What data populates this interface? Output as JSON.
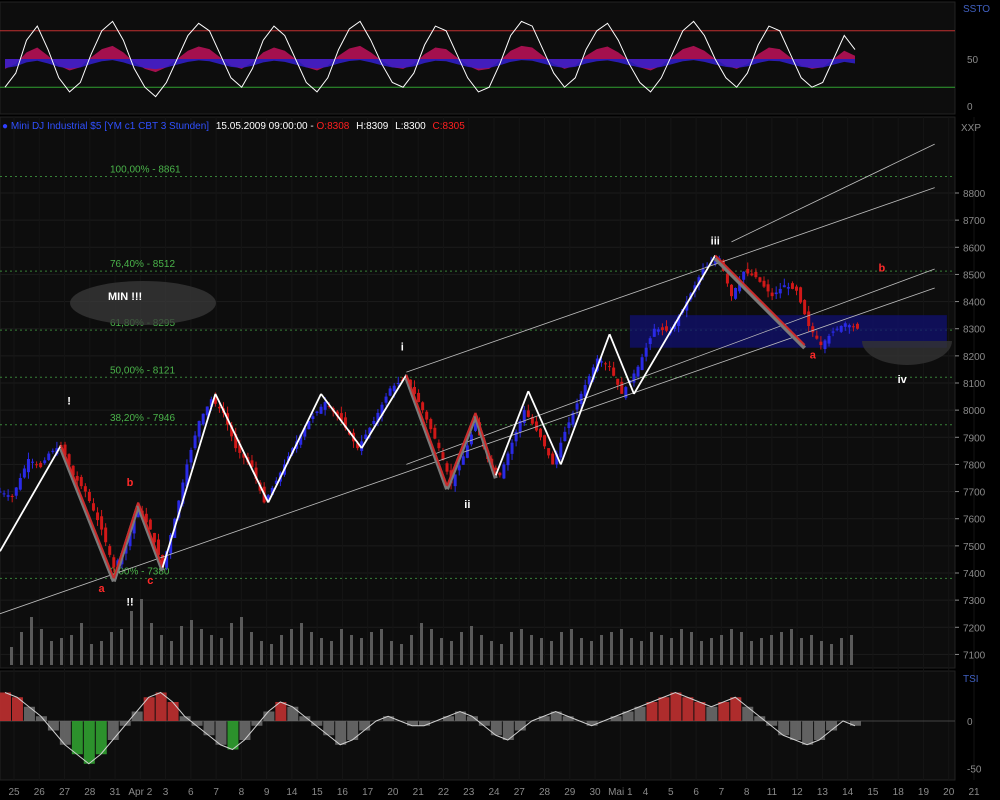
{
  "colors": {
    "bg": "#000000",
    "pane": "#0d0d0d",
    "grid": "#1c1c1c",
    "up": "#2a2ae6",
    "down": "#d11818",
    "axis": "#8a8a8a",
    "fib": "#4ab34a",
    "swing_white": "#ffffff",
    "swing_red": "#cc2a2a",
    "channel": "#bdbdbd",
    "header_blue": "#2f3fff",
    "header_red": "#ff2020"
  },
  "header": {
    "instrument": "Mini DJ Industrial $5 [YM c1 CBT 3 Stunden]",
    "datetime": "15.05.2009 09:00:00",
    "open_label": "O:8308",
    "high_label": "H:8309",
    "low_label": "L:8300",
    "close_label": "C:8305",
    "separator": " - "
  },
  "top_panel": {
    "name": "SSTO",
    "ticks": [
      "50",
      "0"
    ],
    "levels": [
      80,
      20
    ]
  },
  "bottom_panel": {
    "name": "TSI",
    "ticks": [
      "0",
      "-50"
    ]
  },
  "chart_data": {
    "type": "candlestick",
    "instrument": "Mini DJ Industrial $5 [YM c1 CBT 3 Stunden]",
    "y_axis_label": "XXP",
    "ylim": [
      7050,
      9080
    ],
    "y_ticks": [
      8800,
      8700,
      8600,
      8500,
      8400,
      8300,
      8200,
      8100,
      8000,
      7900,
      7800,
      7700,
      7600,
      7500,
      7400,
      7300,
      7200,
      7100
    ],
    "x_ticks": [
      "25",
      "26",
      "27",
      "28",
      "31",
      "Apr 2",
      "3",
      "6",
      "7",
      "8",
      "9",
      "14",
      "15",
      "16",
      "17",
      "20",
      "21",
      "22",
      "23",
      "24",
      "27",
      "28",
      "29",
      "30",
      "Mai 1",
      "4",
      "5",
      "6",
      "7",
      "8",
      "11",
      "12",
      "13",
      "14",
      "15",
      "18",
      "19",
      "20",
      "21"
    ],
    "last_ohlc": {
      "open": 8308,
      "high": 8309,
      "low": 8300,
      "close": 8305
    },
    "fib_levels": [
      {
        "label": "100,00% - 8861",
        "price": 8861
      },
      {
        "label": "76,40% - 8512",
        "price": 8512
      },
      {
        "label": "61,80% - 8295",
        "price": 8295
      },
      {
        "label": "50,00% - 8121",
        "price": 8121
      },
      {
        "label": "38,20% - 7946",
        "price": 7946
      },
      {
        "label": "0,00% - 7380",
        "price": 7380
      }
    ],
    "price_path": [
      [
        0,
        7700
      ],
      [
        3,
        7680
      ],
      [
        7,
        7820
      ],
      [
        10,
        7790
      ],
      [
        12,
        7840
      ],
      [
        15,
        7870
      ],
      [
        18,
        7760
      ],
      [
        21,
        7700
      ],
      [
        25,
        7560
      ],
      [
        28,
        7420
      ],
      [
        31,
        7500
      ],
      [
        34,
        7640
      ],
      [
        37,
        7560
      ],
      [
        40,
        7420
      ],
      [
        43,
        7600
      ],
      [
        46,
        7800
      ],
      [
        49,
        7960
      ],
      [
        52,
        8040
      ],
      [
        55,
        7990
      ],
      [
        58,
        7860
      ],
      [
        62,
        7790
      ],
      [
        65,
        7660
      ],
      [
        68,
        7740
      ],
      [
        72,
        7860
      ],
      [
        76,
        7960
      ],
      [
        80,
        8030
      ],
      [
        84,
        7960
      ],
      [
        88,
        7860
      ],
      [
        92,
        7960
      ],
      [
        96,
        8080
      ],
      [
        100,
        8120
      ],
      [
        104,
        8000
      ],
      [
        108,
        7860
      ],
      [
        111,
        7730
      ],
      [
        114,
        7830
      ],
      [
        117,
        7950
      ],
      [
        120,
        7820
      ],
      [
        123,
        7760
      ],
      [
        126,
        7880
      ],
      [
        129,
        8000
      ],
      [
        133,
        7900
      ],
      [
        136,
        7800
      ],
      [
        139,
        7920
      ],
      [
        143,
        8060
      ],
      [
        147,
        8190
      ],
      [
        150,
        8160
      ],
      [
        153,
        8060
      ],
      [
        157,
        8160
      ],
      [
        161,
        8300
      ],
      [
        165,
        8290
      ],
      [
        169,
        8400
      ],
      [
        173,
        8520
      ],
      [
        177,
        8560
      ],
      [
        180,
        8420
      ],
      [
        183,
        8510
      ],
      [
        186,
        8490
      ],
      [
        190,
        8420
      ],
      [
        193,
        8460
      ],
      [
        196,
        8440
      ],
      [
        199,
        8310
      ],
      [
        202,
        8240
      ],
      [
        205,
        8290
      ],
      [
        208,
        8320
      ],
      [
        211,
        8300
      ]
    ],
    "swings": [
      {
        "from": [
          0,
          7480
        ],
        "to": [
          15,
          7870
        ],
        "color": "white"
      },
      {
        "from": [
          15,
          7870
        ],
        "to": [
          28,
          7380
        ],
        "color": "red"
      },
      {
        "from": [
          28,
          7380
        ],
        "to": [
          34,
          7660
        ],
        "color": "red"
      },
      {
        "from": [
          34,
          7660
        ],
        "to": [
          40,
          7420
        ],
        "color": "red"
      },
      {
        "from": [
          40,
          7420
        ],
        "to": [
          53,
          8060
        ],
        "color": "white"
      },
      {
        "from": [
          53,
          8060
        ],
        "to": [
          66,
          7660
        ],
        "color": "white"
      },
      {
        "from": [
          66,
          7660
        ],
        "to": [
          79,
          8060
        ],
        "color": "white"
      },
      {
        "from": [
          79,
          8060
        ],
        "to": [
          89,
          7860
        ],
        "color": "white"
      },
      {
        "from": [
          89,
          7860
        ],
        "to": [
          100,
          8130
        ],
        "color": "white"
      },
      {
        "from": [
          100,
          8130
        ],
        "to": [
          110,
          7720
        ],
        "color": "red"
      },
      {
        "from": [
          110,
          7720
        ],
        "to": [
          117,
          7990
        ],
        "color": "red"
      },
      {
        "from": [
          117,
          7990
        ],
        "to": [
          122,
          7760
        ],
        "color": "red"
      },
      {
        "from": [
          122,
          7760
        ],
        "to": [
          130,
          8070
        ],
        "color": "white"
      },
      {
        "from": [
          130,
          8070
        ],
        "to": [
          138,
          7800
        ],
        "color": "white"
      },
      {
        "from": [
          138,
          7800
        ],
        "to": [
          150,
          8280
        ],
        "color": "white"
      },
      {
        "from": [
          150,
          8280
        ],
        "to": [
          156,
          8060
        ],
        "color": "white"
      },
      {
        "from": [
          156,
          8060
        ],
        "to": [
          176,
          8570
        ],
        "color": "white"
      },
      {
        "from": [
          176,
          8570
        ],
        "to": [
          198,
          8240
        ],
        "color": "red"
      }
    ],
    "channels": [
      {
        "from": [
          0,
          7250
        ],
        "to": [
          230,
          8450
        ]
      },
      {
        "from": [
          100,
          8140
        ],
        "to": [
          230,
          8820
        ]
      },
      {
        "from": [
          180,
          8620
        ],
        "to": [
          230,
          8980
        ]
      },
      {
        "from": [
          100,
          7800
        ],
        "to": [
          230,
          8520
        ]
      }
    ],
    "target_zone": {
      "x_from": 155,
      "x_to": 233,
      "low": 8230,
      "high": 8350
    },
    "wave_labels": [
      {
        "text": "!",
        "x": 17,
        "y": 8020,
        "color": "white"
      },
      {
        "text": "a",
        "x": 25,
        "y": 7330,
        "color": "red"
      },
      {
        "text": "b",
        "x": 32,
        "y": 7720,
        "color": "red"
      },
      {
        "text": "c",
        "x": 37,
        "y": 7360,
        "color": "red"
      },
      {
        "text": "!!",
        "x": 32,
        "y": 7280,
        "color": "white"
      },
      {
        "text": "i",
        "x": 99,
        "y": 8220,
        "color": "white"
      },
      {
        "text": "ii",
        "x": 115,
        "y": 7640,
        "color": "white"
      },
      {
        "text": "iii",
        "x": 176,
        "y": 8610,
        "color": "white"
      },
      {
        "text": "a",
        "x": 200,
        "y": 8190,
        "color": "red"
      },
      {
        "text": "b",
        "x": 217,
        "y": 8510,
        "color": "red"
      },
      {
        "text": "iv",
        "x": 222,
        "y": 8100,
        "color": "white"
      }
    ],
    "annotation_min": "MIN !!!",
    "volume": [
      30,
      55,
      80,
      60,
      40,
      45,
      50,
      70,
      35,
      40,
      55,
      60,
      90,
      110,
      70,
      50,
      40,
      65,
      75,
      60,
      50,
      45,
      70,
      80,
      55,
      40,
      35,
      50,
      60,
      70,
      55,
      45,
      40,
      60,
      50,
      45,
      55,
      60,
      40,
      35,
      50,
      70,
      60,
      45,
      40,
      55,
      65,
      50,
      40,
      35,
      55,
      60,
      50,
      45,
      40,
      55,
      60,
      45,
      40,
      50,
      55,
      60,
      45,
      40,
      55,
      50,
      45,
      60,
      55,
      40,
      45,
      50,
      60,
      55,
      40,
      45,
      50,
      55,
      60,
      45,
      50,
      40,
      35,
      45,
      50
    ],
    "ssto": [
      20,
      35,
      70,
      85,
      60,
      30,
      15,
      25,
      55,
      80,
      90,
      70,
      40,
      20,
      10,
      25,
      50,
      75,
      88,
      80,
      55,
      30,
      20,
      40,
      70,
      85,
      75,
      50,
      25,
      15,
      30,
      60,
      82,
      90,
      70,
      45,
      25,
      20,
      35,
      65,
      85,
      80,
      55,
      30,
      15,
      20,
      45,
      75,
      90,
      85,
      60,
      35,
      20,
      30,
      60,
      80,
      88,
      70,
      45,
      25,
      15,
      30,
      55,
      80,
      90,
      75,
      50,
      30,
      20,
      35,
      65,
      85,
      80,
      55,
      30,
      20,
      25,
      50,
      75,
      60
    ],
    "tsi": [
      30,
      25,
      15,
      5,
      -10,
      -25,
      -35,
      -45,
      -35,
      -20,
      -5,
      10,
      25,
      30,
      20,
      5,
      -5,
      -15,
      -25,
      -30,
      -20,
      -5,
      10,
      20,
      15,
      5,
      -5,
      -15,
      -25,
      -20,
      -10,
      0,
      5,
      0,
      -5,
      -5,
      0,
      5,
      10,
      5,
      -5,
      -15,
      -20,
      -10,
      0,
      5,
      10,
      5,
      0,
      -5,
      0,
      5,
      10,
      15,
      20,
      25,
      30,
      25,
      20,
      15,
      20,
      25,
      15,
      5,
      -5,
      -15,
      -20,
      -25,
      -20,
      -10,
      0,
      -5
    ]
  }
}
